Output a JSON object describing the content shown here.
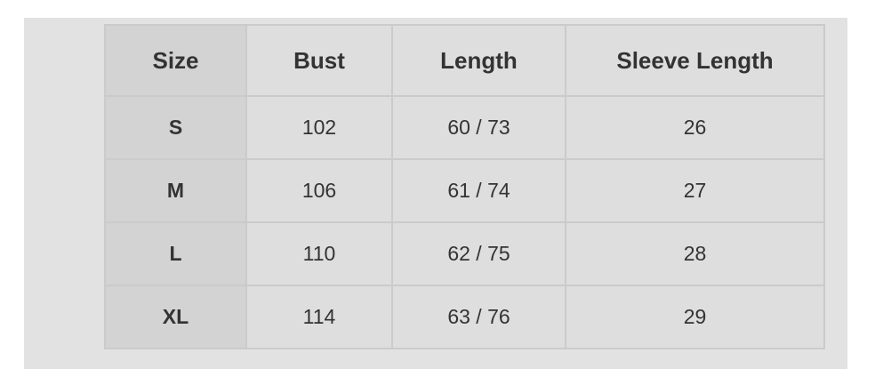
{
  "table": {
    "header": [
      "Size",
      "Bust",
      "Length",
      "Sleeve Length"
    ],
    "rows": [
      [
        "S",
        "102",
        "60 / 73",
        "26"
      ],
      [
        "M",
        "106",
        "61 / 74",
        "27"
      ],
      [
        "L",
        "110",
        "62 / 75",
        "28"
      ],
      [
        "XL",
        "114",
        "63 / 76",
        "29"
      ]
    ]
  }
}
